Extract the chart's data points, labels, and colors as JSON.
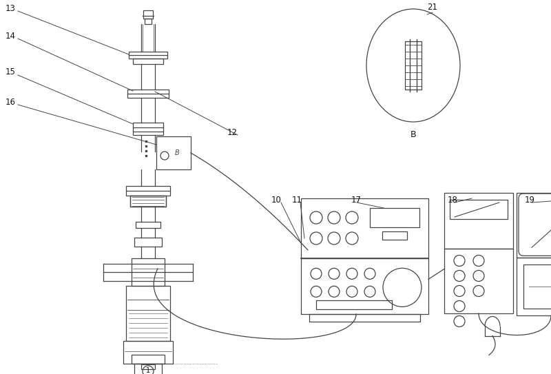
{
  "bg_color": "#ffffff",
  "line_color": "#444444",
  "label_color": "#111111",
  "figsize": [
    8.0,
    5.43
  ],
  "dpi": 100
}
